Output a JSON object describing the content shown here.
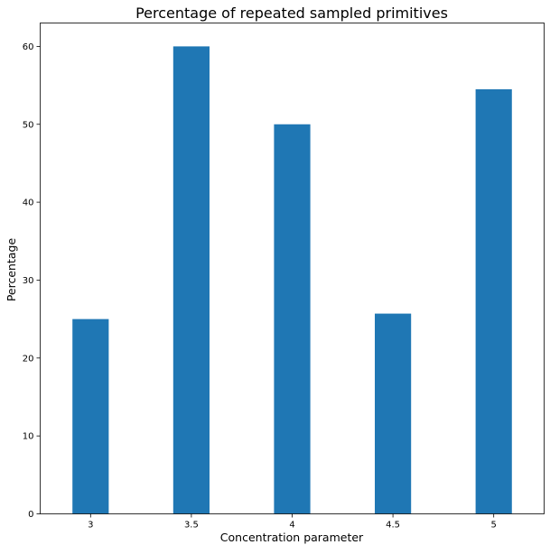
{
  "chart_data": {
    "type": "bar",
    "title": "Percentage of repeated sampled primitives",
    "xlabel": "Concentration parameter",
    "ylabel": "Percentage",
    "categories": [
      "3",
      "3.5",
      "4",
      "4.5",
      "5"
    ],
    "values": [
      25,
      60,
      50,
      25.7,
      54.5
    ],
    "ylim": [
      0,
      63
    ],
    "yticks": [
      0,
      10,
      20,
      30,
      40,
      50,
      60
    ],
    "bar_color": "#1f77b4",
    "grid": false,
    "legend": "none"
  }
}
